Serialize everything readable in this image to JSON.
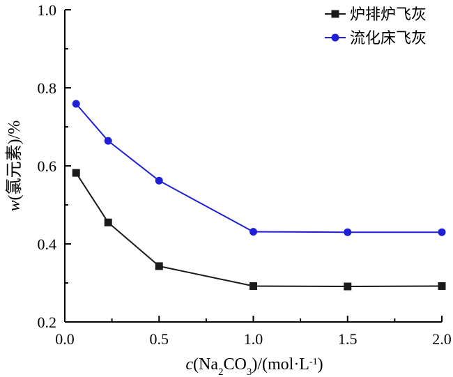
{
  "chart_data": {
    "type": "line",
    "x": [
      0.06,
      0.23,
      0.5,
      1.0,
      1.5,
      2.0
    ],
    "series": [
      {
        "name": "炉排炉飞灰",
        "values": [
          0.582,
          0.455,
          0.343,
          0.292,
          0.291,
          0.292
        ],
        "color": "#1a1a1a",
        "marker": "square"
      },
      {
        "name": "流化床飞灰",
        "values": [
          0.759,
          0.664,
          0.562,
          0.431,
          0.43,
          0.43
        ],
        "color": "#1f1fd6",
        "marker": "circle"
      }
    ],
    "xlim": [
      0,
      2.0
    ],
    "ylim": [
      0.2,
      1.0
    ],
    "xticks": [
      "0.0",
      "0.5",
      "1.0",
      "1.5",
      "2.0"
    ],
    "yticks": [
      "0.2",
      "0.4",
      "0.6",
      "0.8",
      "1.0"
    ],
    "xlabel": {
      "var": "c",
      "open": "(Na",
      "sub1": "2",
      "mid": "CO",
      "sub2": "3",
      "close": ")/(mol·L",
      "sup": "-1",
      "end": ")"
    },
    "ylabel": {
      "var": "w",
      "rest": "(氯元素)/%"
    },
    "legend_position": "top-right",
    "grid": false
  }
}
